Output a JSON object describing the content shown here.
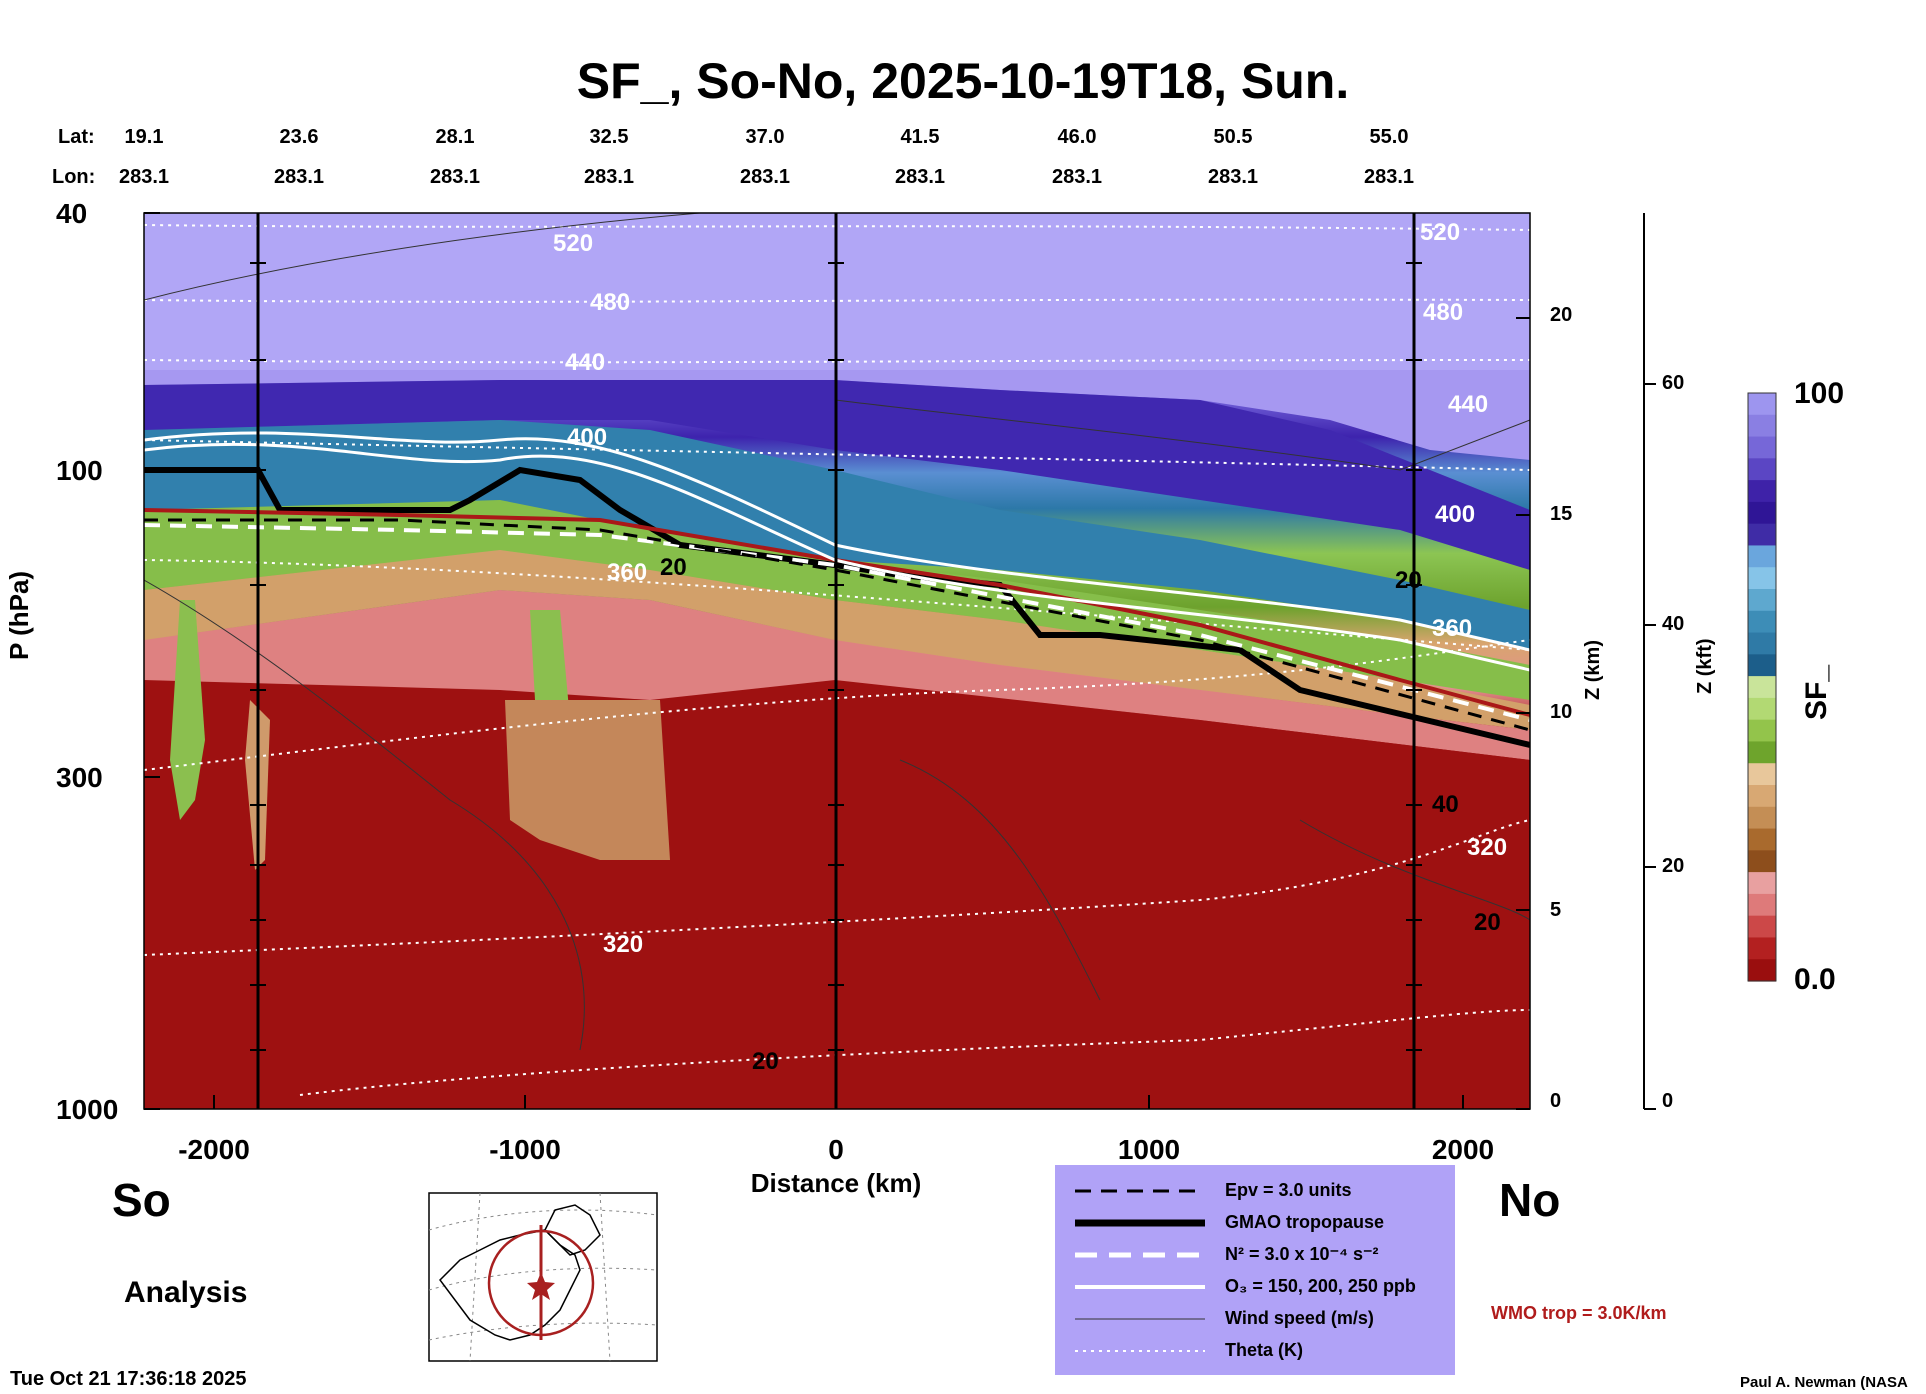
{
  "title": "SF_, So-No, 2025-10-19T18, Sun.",
  "header": {
    "lat_label": "Lat:",
    "lon_label": "Lon:",
    "lats": [
      "19.1",
      "23.6",
      "28.1",
      "32.5",
      "37.0",
      "41.5",
      "46.0",
      "50.5",
      "55.0"
    ],
    "lons": [
      "283.1",
      "283.1",
      "283.1",
      "283.1",
      "283.1",
      "283.1",
      "283.1",
      "283.1",
      "283.1"
    ]
  },
  "left_axis": {
    "label": "P (hPa)",
    "ticks": [
      "40",
      "100",
      "300",
      "1000"
    ]
  },
  "bottom_axis": {
    "label": "Distance (km)",
    "ticks": [
      "-2000",
      "-1000",
      "0",
      "1000",
      "2000"
    ]
  },
  "z_km_axis": {
    "label": "Z (km)",
    "ticks": [
      "20",
      "15",
      "10",
      "5",
      "0"
    ]
  },
  "z_kft_axis": {
    "label": "Z (kft)",
    "ticks": [
      "60",
      "40",
      "20",
      "0"
    ]
  },
  "colorbar": {
    "label": "SF_",
    "max_label": "100",
    "min_label": "0.0",
    "colors": [
      "#9d95ef",
      "#8a7fe3",
      "#7667d8",
      "#5b46c4",
      "#3e22a8",
      "#2f1596",
      "#3f2ca6",
      "#6aa6dd",
      "#86c4e8",
      "#5ea8cf",
      "#3d8db7",
      "#2f7aa6",
      "#1c5e8a",
      "#c9e49a",
      "#b2d973",
      "#93c44b",
      "#6ea42c",
      "#e8c79b",
      "#d8a873",
      "#c48e55",
      "#a96a2d",
      "#8d4e1c",
      "#e8a0a0",
      "#de7a7a",
      "#cc4848",
      "#b32020",
      "#9a0e0e"
    ]
  },
  "labels": {
    "south": "So",
    "north": "No",
    "analysis": "Analysis",
    "timestamp": "Tue Oct 21 17:36:18 2025",
    "wmo": "WMO trop = 3.0K/km",
    "credit": "Paul A. Newman (NASA"
  },
  "legend": {
    "epv": "Epv = 3.0 units",
    "tropopause": "GMAO tropopause",
    "n2": "N² = 3.0 x 10⁻⁴ s⁻²",
    "o3": "O₃ = 150, 200, 250 ppb",
    "wind": "Wind speed (m/s)",
    "theta": "Theta (K)"
  },
  "contour_labels": {
    "theta_520": "520",
    "theta_480": "480",
    "theta_440": "440",
    "theta_400": "400",
    "theta_360": "360",
    "theta_320": "320",
    "wind_20": "20",
    "wind_40": "40"
  },
  "chart_data": {
    "type": "heatmap",
    "title": "SF_, So-No, 2025-10-19T18, Sun.",
    "xlabel": "Distance (km)",
    "ylabel": "P (hPa)",
    "xlim": [
      -2250,
      2250
    ],
    "ylim": [
      1000,
      40
    ],
    "y_scale": "log",
    "colorbar": {
      "label": "SF_",
      "range": [
        0.0,
        100
      ]
    },
    "x_ticks": [
      -2000,
      -1000,
      0,
      1000,
      2000
    ],
    "y_ticks": [
      40,
      100,
      300,
      1000
    ],
    "secondary_axes": {
      "z_km": [
        0,
        5,
        10,
        15,
        20
      ],
      "z_kft": [
        0,
        20,
        40,
        60
      ]
    },
    "top_axis": {
      "lat": [
        19.1,
        23.6,
        28.1,
        32.5,
        37.0,
        41.5,
        46.0,
        50.5,
        55.0
      ],
      "lon": [
        283.1,
        283.1,
        283.1,
        283.1,
        283.1,
        283.1,
        283.1,
        283.1,
        283.1
      ]
    },
    "gmao_tropopause": {
      "x": [
        -2250,
        -1850,
        -1800,
        -1200,
        -1000,
        -750,
        -650,
        -400,
        0,
        200,
        400,
        600,
        700,
        900,
        1300,
        1450,
        1800,
        2250
      ],
      "p": [
        98,
        98,
        115,
        110,
        100,
        100,
        125,
        140,
        155,
        160,
        162,
        170,
        190,
        185,
        190,
        225,
        225,
        275
      ]
    },
    "wmo_tropopause": {
      "x": [
        -2250,
        -1500,
        -1000,
        -500,
        0,
        500,
        1000,
        1500,
        2000,
        2250
      ],
      "p": [
        115,
        118,
        120,
        125,
        150,
        165,
        178,
        195,
        225,
        260
      ]
    },
    "theta_contours_K": [
      320,
      360,
      400,
      440,
      480,
      520
    ],
    "wind_contours_m_s": [
      20,
      40
    ]
  }
}
